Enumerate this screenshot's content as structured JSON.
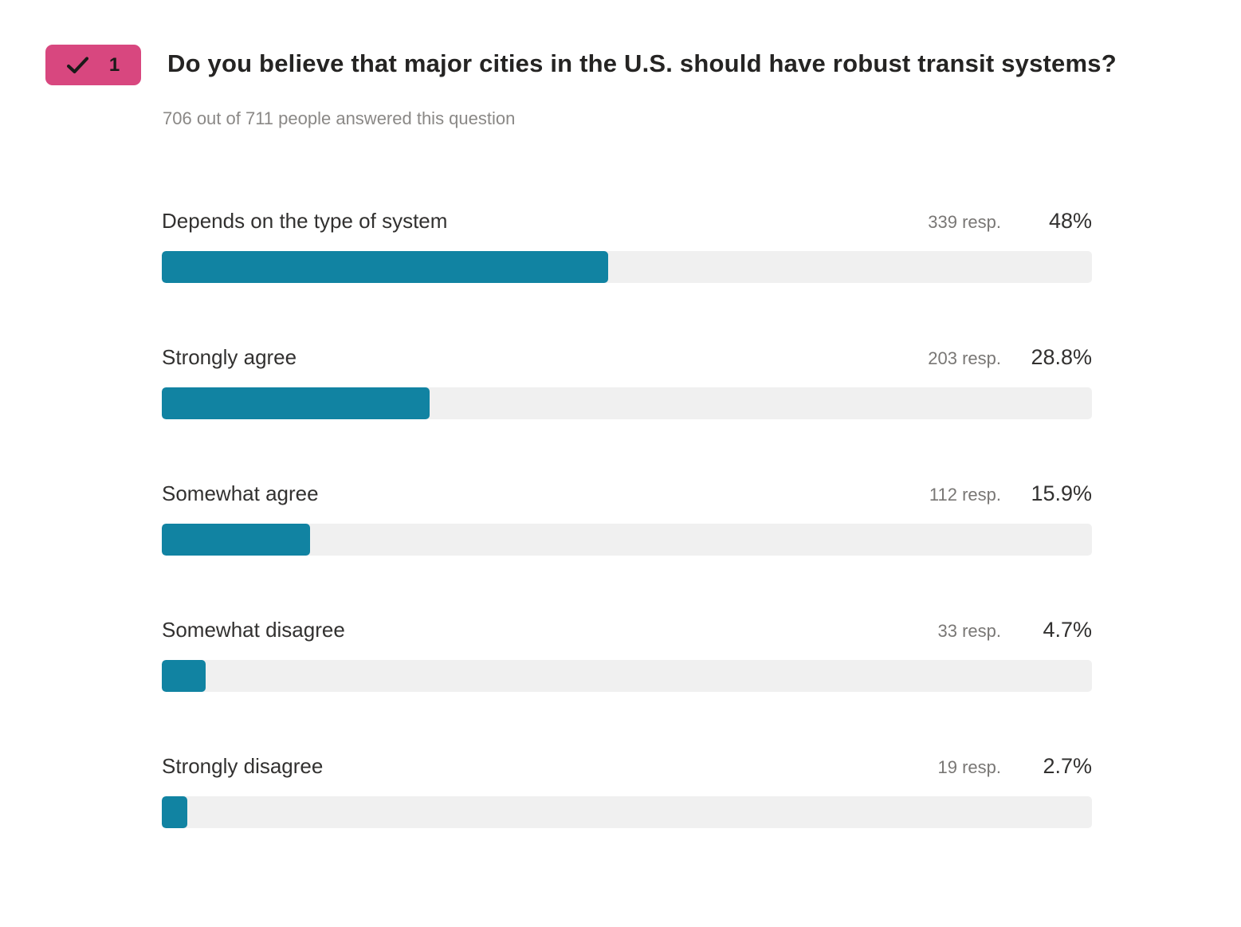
{
  "question": {
    "badge_number": "1",
    "title": "Do you believe that major cities in the U.S. should have robust transit systems?",
    "answered_text": "706 out of 711 people answered this question"
  },
  "colors": {
    "bar_fill": "#1183a2",
    "bar_track": "#f0f0f0",
    "badge_bg": "#d8477f"
  },
  "chart_data": {
    "type": "bar",
    "orientation": "horizontal",
    "title": "Do you believe that major cities in the U.S. should have robust transit systems?",
    "categories": [
      "Depends on the type of system",
      "Strongly agree",
      "Somewhat agree",
      "Somewhat disagree",
      "Strongly disagree"
    ],
    "values": [
      48,
      28.8,
      15.9,
      4.7,
      2.7
    ],
    "counts": [
      339,
      203,
      112,
      33,
      19
    ],
    "value_suffix": "%",
    "xlim": [
      0,
      100
    ],
    "legend": "none",
    "grid": "off"
  },
  "responses": [
    {
      "label": "Depends on the type of system",
      "count_label": "339 resp.",
      "percent_label": "48%",
      "value": 48
    },
    {
      "label": "Strongly agree",
      "count_label": "203 resp.",
      "percent_label": "28.8%",
      "value": 28.8
    },
    {
      "label": "Somewhat agree",
      "count_label": "112 resp.",
      "percent_label": "15.9%",
      "value": 15.9
    },
    {
      "label": "Somewhat disagree",
      "count_label": "33 resp.",
      "percent_label": "4.7%",
      "value": 4.7
    },
    {
      "label": "Strongly disagree",
      "count_label": "19 resp.",
      "percent_label": "2.7%",
      "value": 2.7
    }
  ]
}
